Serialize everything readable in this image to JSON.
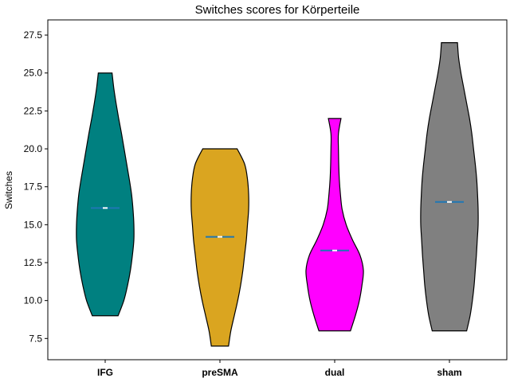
{
  "chart_data": {
    "type": "violin",
    "title": "Switches scores for Körperteile",
    "xlabel": "",
    "ylabel": "Switches",
    "ylim": [
      6.1,
      28.5
    ],
    "yticks": [
      7.5,
      10.0,
      12.5,
      15.0,
      17.5,
      20.0,
      22.5,
      25.0,
      27.5
    ],
    "ytick_labels": [
      "7.5",
      "10.0",
      "12.5",
      "15.0",
      "17.5",
      "20.0",
      "22.5",
      "25.0",
      "27.5"
    ],
    "grid": false,
    "categories": [
      "IFG",
      "preSMA",
      "dual",
      "sham"
    ],
    "series": [
      {
        "category": "IFG",
        "color": "#008080",
        "min": 9,
        "max": 25,
        "mean": 16.1,
        "profile": [
          [
            9,
            0.45
          ],
          [
            10,
            0.65
          ],
          [
            11,
            0.78
          ],
          [
            12,
            0.88
          ],
          [
            13,
            0.95
          ],
          [
            14,
            1.0
          ],
          [
            15,
            1.0
          ],
          [
            16,
            0.97
          ],
          [
            17,
            0.92
          ],
          [
            18,
            0.84
          ],
          [
            19,
            0.75
          ],
          [
            20,
            0.66
          ],
          [
            21,
            0.57
          ],
          [
            22,
            0.47
          ],
          [
            23,
            0.38
          ],
          [
            24,
            0.3
          ],
          [
            25,
            0.24
          ]
        ]
      },
      {
        "category": "preSMA",
        "color": "#DAA520",
        "min": 7,
        "max": 20,
        "mean": 14.2,
        "profile": [
          [
            7,
            0.3
          ],
          [
            8,
            0.38
          ],
          [
            9,
            0.5
          ],
          [
            10,
            0.62
          ],
          [
            11,
            0.72
          ],
          [
            12,
            0.8
          ],
          [
            13,
            0.86
          ],
          [
            14,
            0.92
          ],
          [
            15,
            0.96
          ],
          [
            16,
            1.0
          ],
          [
            17,
            1.0
          ],
          [
            18,
            0.96
          ],
          [
            19,
            0.86
          ],
          [
            20,
            0.6
          ]
        ]
      },
      {
        "category": "dual",
        "color": "#FF00FF",
        "min": 8,
        "max": 22,
        "mean": 13.3,
        "profile": [
          [
            8,
            0.55
          ],
          [
            9,
            0.72
          ],
          [
            10,
            0.86
          ],
          [
            11,
            0.95
          ],
          [
            12,
            1.0
          ],
          [
            13,
            0.88
          ],
          [
            14,
            0.62
          ],
          [
            15,
            0.4
          ],
          [
            16,
            0.26
          ],
          [
            17,
            0.2
          ],
          [
            18,
            0.16
          ],
          [
            19,
            0.14
          ],
          [
            20,
            0.13
          ],
          [
            21,
            0.13
          ],
          [
            22,
            0.22
          ]
        ]
      },
      {
        "category": "sham",
        "color": "#808080",
        "min": 8,
        "max": 27,
        "mean": 16.5,
        "profile": [
          [
            8,
            0.6
          ],
          [
            9,
            0.72
          ],
          [
            10,
            0.8
          ],
          [
            11,
            0.86
          ],
          [
            12,
            0.9
          ],
          [
            13,
            0.94
          ],
          [
            14,
            0.97
          ],
          [
            15,
            1.0
          ],
          [
            16,
            1.0
          ],
          [
            17,
            0.98
          ],
          [
            18,
            0.95
          ],
          [
            19,
            0.9
          ],
          [
            20,
            0.84
          ],
          [
            21,
            0.78
          ],
          [
            22,
            0.7
          ],
          [
            23,
            0.6
          ],
          [
            24,
            0.5
          ],
          [
            25,
            0.4
          ],
          [
            26,
            0.32
          ],
          [
            27,
            0.28
          ]
        ]
      }
    ]
  }
}
